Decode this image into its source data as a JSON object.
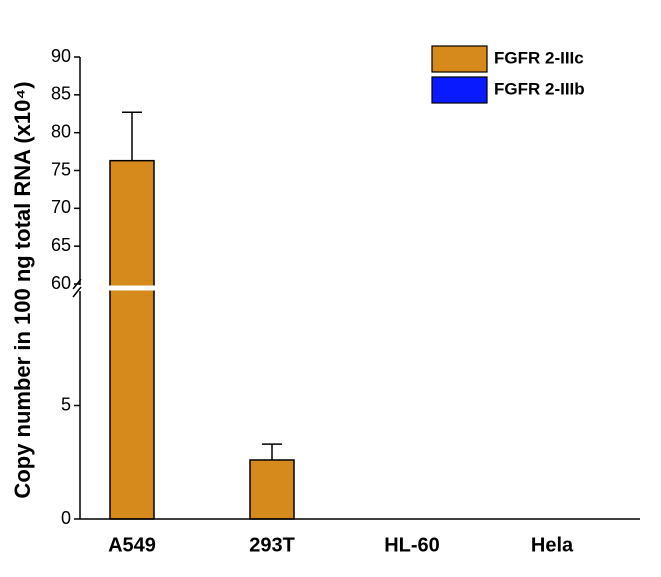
{
  "chart_data": {
    "type": "bar",
    "y_label": "Copy number in 100 ng total RNA (x10⁴)",
    "categories": [
      "A549",
      "293T",
      "HL-60",
      "Hela"
    ],
    "series": [
      {
        "name": "FGFR 2-IIIc",
        "color": "#d58a1b",
        "values": [
          76.3,
          2.6,
          0,
          0
        ],
        "errors": [
          6.4,
          0.7,
          0,
          0
        ]
      },
      {
        "name": "FGFR 2-IIIb",
        "color": "#0a1aff",
        "values": [
          0,
          0,
          0,
          0
        ],
        "errors": [
          0,
          0,
          0,
          0
        ]
      }
    ],
    "ylim": [
      0,
      90
    ],
    "ybreak": [
      10,
      60
    ],
    "yticks": [
      0,
      5,
      60,
      65,
      70,
      75,
      80,
      85,
      90
    ]
  }
}
